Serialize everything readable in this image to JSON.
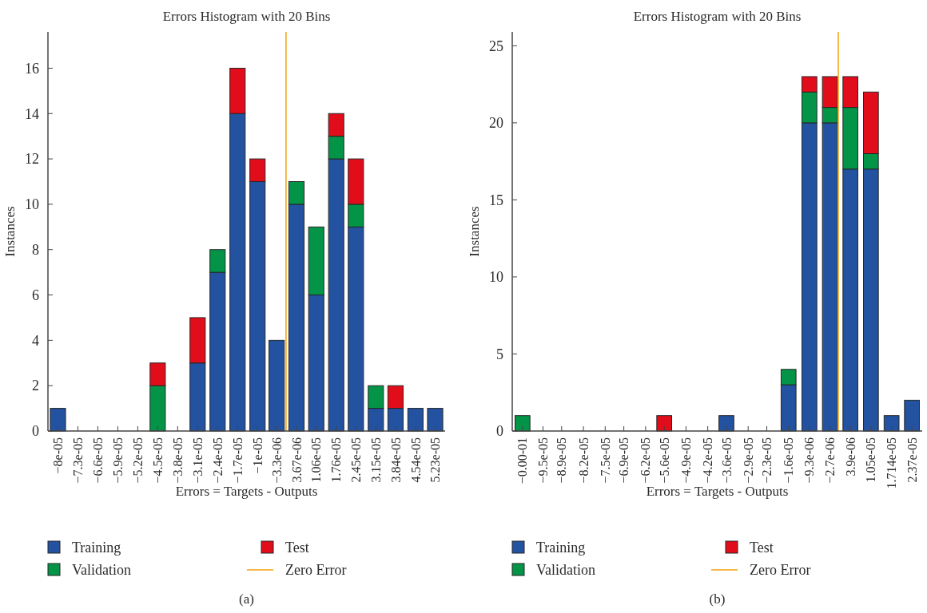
{
  "chart_data": [
    {
      "type": "bar",
      "title": "Errors Histogram with 20 Bins",
      "xlabel": "Errors = Targets - Outputs",
      "ylabel": "Instances",
      "stacked": true,
      "legend": "bottom",
      "annotations": [
        "(a)"
      ],
      "x": [
        -8e-05,
        -7.3e-05,
        -6.6e-05,
        -5.9e-05,
        -5.2e-05,
        -4.5e-05,
        -3.8e-05,
        -3.1e-05,
        -2.4e-05,
        -1.7e-05,
        -1e-05,
        -3.3e-06,
        3.67e-06,
        1.06e-05,
        1.76e-05,
        2.45e-05,
        3.15e-05,
        3.84e-05,
        4.54e-05,
        5.23e-05
      ],
      "xlim": [
        -8.35e-05,
        5.58e-05
      ],
      "xticks": [
        {
          "value": -8e-05,
          "label": "−8e-05"
        },
        {
          "value": -7.3e-05,
          "label": "−7.3e-05"
        },
        {
          "value": -6.6e-05,
          "label": "−6.6e-05"
        },
        {
          "value": -5.9e-05,
          "label": "−5.9e-05"
        },
        {
          "value": -5.2e-05,
          "label": "−5.2e-05"
        },
        {
          "value": -4.5e-05,
          "label": "−4.5e-05"
        },
        {
          "value": -3.8e-05,
          "label": "−3.8e-05"
        },
        {
          "value": -3.1e-05,
          "label": "−3.1e-05"
        },
        {
          "value": -2.4e-05,
          "label": "−2.4e-05"
        },
        {
          "value": -1.7e-05,
          "label": "−1.7e-05"
        },
        {
          "value": -1e-05,
          "label": "−1e-05"
        },
        {
          "value": -3.3e-06,
          "label": "−3.3e-06"
        },
        {
          "value": 3.67e-06,
          "label": "3.67e-06"
        },
        {
          "value": 1.06e-05,
          "label": "1.06e-05"
        },
        {
          "value": 1.76e-05,
          "label": "1.76e-05"
        },
        {
          "value": 2.45e-05,
          "label": "2.45e-05"
        },
        {
          "value": 3.15e-05,
          "label": "3.15e-05"
        },
        {
          "value": 3.84e-05,
          "label": "3.84e-05"
        },
        {
          "value": 4.54e-05,
          "label": "4.54e-05"
        },
        {
          "value": 5.23e-05,
          "label": "5.23e-05"
        }
      ],
      "ylim": [
        0,
        17.6
      ],
      "yticks": [
        0,
        2,
        4,
        6,
        8,
        10,
        12,
        14,
        16
      ],
      "series": [
        {
          "name": "Training",
          "color": "#2352a0",
          "values": [
            1,
            0,
            0,
            0,
            0,
            0,
            0,
            3,
            7,
            14,
            11,
            4,
            10,
            6,
            12,
            9,
            1,
            1,
            1,
            1
          ]
        },
        {
          "name": "Validation",
          "color": "#039447",
          "values": [
            0,
            0,
            0,
            0,
            0,
            2,
            0,
            0,
            1,
            0,
            0,
            0,
            1,
            3,
            1,
            1,
            1,
            0,
            0,
            0
          ]
        },
        {
          "name": "Test",
          "color": "#e20d1a",
          "values": [
            0,
            0,
            0,
            0,
            0,
            1,
            0,
            2,
            0,
            2,
            1,
            0,
            0,
            0,
            1,
            2,
            0,
            1,
            0,
            0
          ]
        }
      ],
      "ref_lines": [
        {
          "axis": "x",
          "value": 0,
          "label": "Zero Error",
          "color": "#f2a20c"
        }
      ]
    },
    {
      "type": "bar",
      "title": "Errors Histogram with 20 Bins",
      "xlabel": "Errors = Targets - Outputs",
      "ylabel": "Instances",
      "stacked": true,
      "legend": "bottom",
      "annotations": [
        "(b)"
      ],
      "x": [
        -0.0001016,
        -9.5e-05,
        -8.9e-05,
        -8.2e-05,
        -7.5e-05,
        -6.9e-05,
        -6.2e-05,
        -5.6e-05,
        -4.9e-05,
        -4.2e-05,
        -3.6e-05,
        -2.9e-05,
        -2.3e-05,
        -1.6e-05,
        -9.3e-06,
        -2.7e-06,
        3.9e-06,
        1.05e-05,
        1.714e-05,
        2.37e-05
      ],
      "xlim": [
        -0.0001049,
        2.7e-05
      ],
      "xticks": [
        {
          "value": -0.0001016,
          "label": "−0.00-01"
        },
        {
          "value": -9.5e-05,
          "label": "−9.5e-05"
        },
        {
          "value": -8.9e-05,
          "label": "−8.9e-05"
        },
        {
          "value": -8.2e-05,
          "label": "−8.2e-05"
        },
        {
          "value": -7.5e-05,
          "label": "−7.5e-05"
        },
        {
          "value": -6.9e-05,
          "label": "−6.9e-05"
        },
        {
          "value": -6.2e-05,
          "label": "−6.2e-05"
        },
        {
          "value": -5.6e-05,
          "label": "−5.6e-05"
        },
        {
          "value": -4.9e-05,
          "label": "−4.9e-05"
        },
        {
          "value": -4.2e-05,
          "label": "−4.2e-05"
        },
        {
          "value": -3.6e-05,
          "label": "−3.6e-05"
        },
        {
          "value": -2.9e-05,
          "label": "−2.9e-05"
        },
        {
          "value": -2.3e-05,
          "label": "−2.3e-05"
        },
        {
          "value": -1.6e-05,
          "label": "−1.6e-05"
        },
        {
          "value": -9.3e-06,
          "label": "−9.3e-06"
        },
        {
          "value": -2.7e-06,
          "label": "−2.7e-06"
        },
        {
          "value": 3.9e-06,
          "label": "3.9e-06"
        },
        {
          "value": 1.05e-05,
          "label": "1.05e-05"
        },
        {
          "value": 1.714e-05,
          "label": "1.714e-05"
        },
        {
          "value": 2.37e-05,
          "label": "2.37e-05"
        }
      ],
      "ylim": [
        0,
        25.9
      ],
      "yticks": [
        0,
        5,
        10,
        15,
        20,
        25
      ],
      "series": [
        {
          "name": "Training",
          "color": "#2352a0",
          "values": [
            0,
            0,
            0,
            0,
            0,
            0,
            0,
            0,
            0,
            0,
            1,
            0,
            0,
            3,
            20,
            20,
            17,
            17,
            1,
            2
          ]
        },
        {
          "name": "Validation",
          "color": "#039447",
          "values": [
            1,
            0,
            0,
            0,
            0,
            0,
            0,
            0,
            0,
            0,
            0,
            0,
            0,
            1,
            2,
            1,
            4,
            1,
            0,
            0
          ]
        },
        {
          "name": "Test",
          "color": "#e20d1a",
          "values": [
            0,
            0,
            0,
            0,
            0,
            0,
            0,
            1,
            0,
            0,
            0,
            0,
            0,
            0,
            1,
            2,
            2,
            4,
            0,
            0
          ]
        }
      ],
      "ref_lines": [
        {
          "axis": "x",
          "value": 0,
          "label": "Zero Error",
          "color": "#f2a20c"
        }
      ]
    }
  ]
}
